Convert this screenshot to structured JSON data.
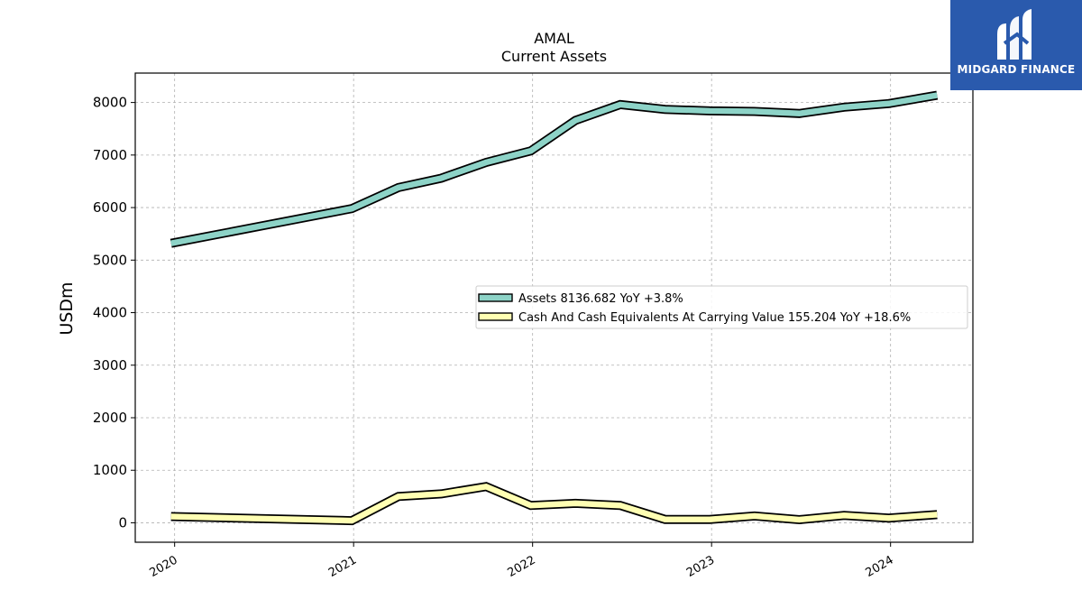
{
  "chart_data": {
    "type": "line",
    "title": "AMAL",
    "subtitle": "Current  Assets",
    "ylabel": "USDm",
    "ylim": [
      -370,
      8560
    ],
    "xlim": [
      2019.78,
      2024.46
    ],
    "yticks": [
      0,
      1000,
      2000,
      3000,
      4000,
      5000,
      6000,
      7000,
      8000
    ],
    "xticks": [
      {
        "value": 2020.0,
        "label": "2020"
      },
      {
        "value": 2021.0,
        "label": "2021"
      },
      {
        "value": 2022.0,
        "label": "2022"
      },
      {
        "value": 2023.0,
        "label": "2023"
      },
      {
        "value": 2024.0,
        "label": "2024"
      }
    ],
    "grid": true,
    "legend_position": "center-right",
    "series": [
      {
        "name": "Assets  8136.682 YoY +3.8%",
        "color": "#8dd3c7",
        "x": [
          2019.98,
          2020.99,
          2021.25,
          2021.49,
          2021.74,
          2021.99,
          2022.24,
          2022.49,
          2022.74,
          2022.99,
          2023.24,
          2023.49,
          2023.74,
          2023.99,
          2024.26
        ],
        "y": [
          5320,
          5980,
          6380,
          6560,
          6860,
          7080,
          7660,
          7960,
          7870,
          7840,
          7830,
          7790,
          7910,
          7980,
          8137
        ]
      },
      {
        "name": "Cash And Cash Equivalents At Carrying Value  155.204 YoY +18.6%",
        "color": "#ffffb3",
        "x": [
          2019.98,
          2020.99,
          2021.25,
          2021.49,
          2021.74,
          2021.99,
          2022.24,
          2022.49,
          2022.74,
          2022.99,
          2023.24,
          2023.49,
          2023.74,
          2023.99,
          2024.26
        ],
        "y": [
          120,
          40,
          500,
          550,
          690,
          330,
          370,
          330,
          65,
          65,
          130,
          60,
          140,
          90,
          155
        ]
      }
    ]
  },
  "logo": {
    "text": "MIDGARD FINANCE"
  }
}
